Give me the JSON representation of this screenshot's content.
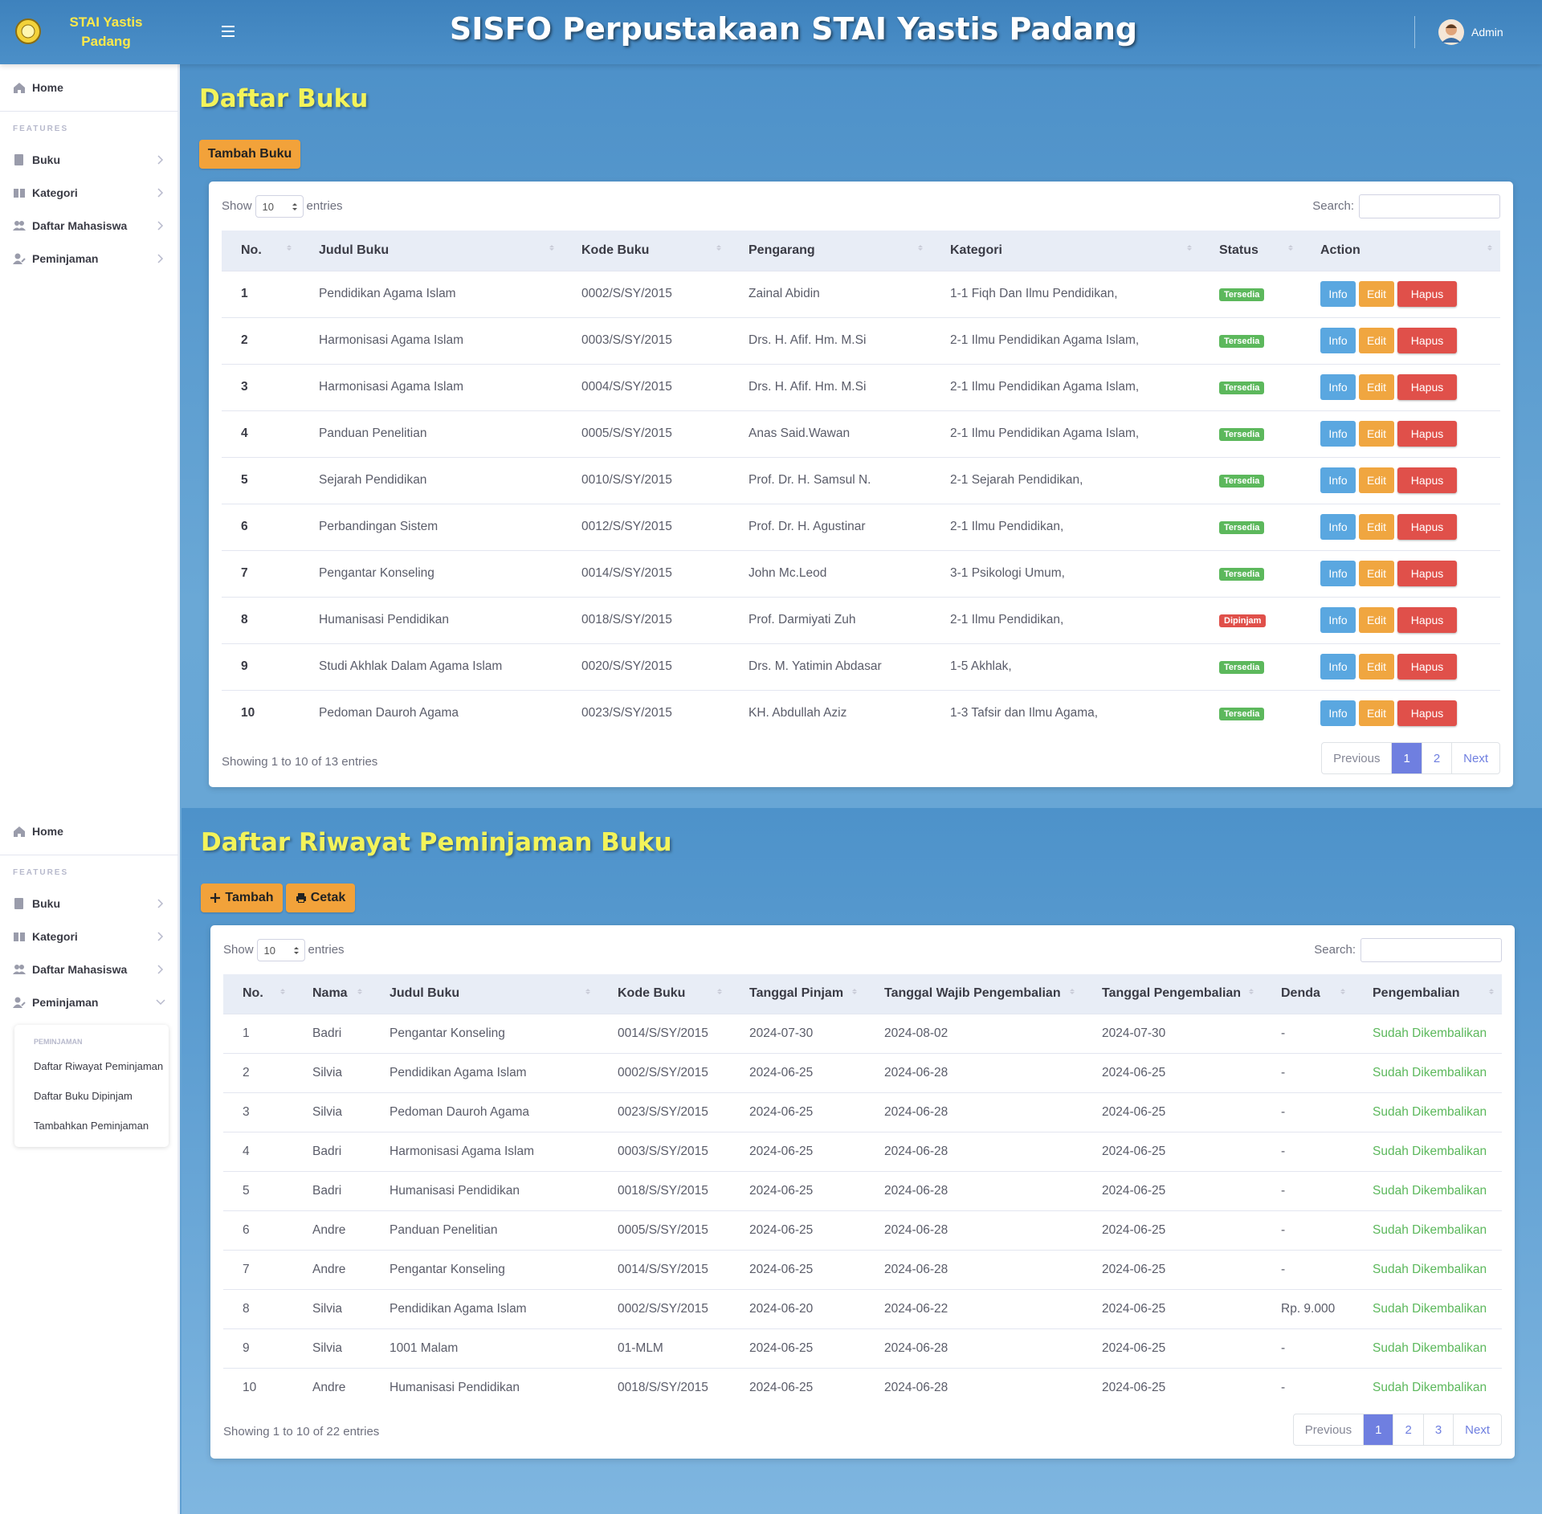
{
  "header": {
    "brand": "STAI Yastis Padang",
    "title": "SISFO Perpustakaan STAI Yastis Padang",
    "user": "Admin"
  },
  "sidebar_top": {
    "home": "Home",
    "features": "FEATURES",
    "menu": [
      "Buku",
      "Kategori",
      "Daftar Mahasiswa",
      "Peminjaman"
    ]
  },
  "sidebar_bottom": {
    "home": "Home",
    "features": "FEATURES",
    "menu": [
      "Buku",
      "Kategori",
      "Daftar Mahasiswa",
      "Peminjaman"
    ],
    "submenu": {
      "heading": "PEMINJAMAN",
      "items": [
        "Daftar Riwayat Peminjaman",
        "Daftar Buku Dipinjam",
        "Tambahkan Peminjaman"
      ]
    }
  },
  "books": {
    "title": "Daftar Buku",
    "buttons": [
      "Tambah Buku"
    ],
    "show_label": "Show",
    "show_value": "10",
    "entries_label": "entries",
    "search_label": "Search:",
    "columns": [
      "No.",
      "Judul Buku",
      "Kode Buku",
      "Pengarang",
      "Kategori",
      "Status",
      "Action"
    ],
    "rows": [
      [
        1,
        "Pendidikan Agama Islam",
        "0002/S/SY/2015",
        "Zainal Abidin",
        "1-1 Fiqh Dan Ilmu Pendidikan,",
        "Tersedia"
      ],
      [
        2,
        "Harmonisasi Agama Islam",
        "0003/S/SY/2015",
        "Drs. H. Afif. Hm. M.Si",
        "2-1 Ilmu Pendidikan Agama Islam,",
        "Tersedia"
      ],
      [
        3,
        "Harmonisasi Agama Islam",
        "0004/S/SY/2015",
        "Drs. H. Afif. Hm. M.Si",
        "2-1 Ilmu Pendidikan Agama Islam,",
        "Tersedia"
      ],
      [
        4,
        "Panduan Penelitian",
        "0005/S/SY/2015",
        "Anas Said.Wawan",
        "2-1 Ilmu Pendidikan Agama Islam,",
        "Tersedia"
      ],
      [
        5,
        "Sejarah Pendidikan",
        "0010/S/SY/2015",
        "Prof. Dr. H. Samsul N.",
        "2-1 Sejarah Pendidikan,",
        "Tersedia"
      ],
      [
        6,
        "Perbandingan Sistem",
        "0012/S/SY/2015",
        "Prof. Dr. H. Agustinar",
        "2-1 Ilmu Pendidikan,",
        "Tersedia"
      ],
      [
        7,
        "Pengantar Konseling",
        "0014/S/SY/2015",
        "John Mc.Leod",
        "3-1 Psikologi Umum,",
        "Tersedia"
      ],
      [
        8,
        "Humanisasi Pendidikan",
        "0018/S/SY/2015",
        "Prof. Darmiyati Zuh",
        "2-1 Ilmu Pendidikan,",
        "Dipinjam"
      ],
      [
        9,
        "Studi Akhlak Dalam Agama Islam",
        "0020/S/SY/2015",
        "Drs. M. Yatimin Abdasar",
        "1-5 Akhlak,",
        "Tersedia"
      ],
      [
        10,
        "Pedoman Dauroh Agama",
        "0023/S/SY/2015",
        "KH. Abdullah Aziz",
        "1-3 Tafsir dan Ilmu Agama,",
        "Tersedia"
      ]
    ],
    "badge_colors": {
      "Tersedia": "#5cb85c",
      "Dipinjam": "#e0504a"
    },
    "actions": [
      "Info",
      "Edit",
      "Hapus"
    ],
    "summary": "Showing 1 to 10 of 13 entries",
    "pagination": [
      "Previous",
      "1",
      "2",
      "Next"
    ]
  },
  "history": {
    "title": "Daftar Riwayat Peminjaman Buku",
    "buttons": [
      "Tambah",
      "Cetak"
    ],
    "show_label": "Show",
    "show_value": "10",
    "entries_label": "entries",
    "search_label": "Search:",
    "columns": [
      "No.",
      "Nama",
      "Judul Buku",
      "Kode Buku",
      "Tanggal Pinjam",
      "Tanggal Wajib Pengembalian",
      "Tanggal Pengembalian",
      "Denda",
      "Pengembalian"
    ],
    "rows": [
      [
        1,
        "Badri",
        "Pengantar Konseling",
        "0014/S/SY/2015",
        "2024-07-30",
        "2024-08-02",
        "2024-07-30",
        "-",
        "Sudah Dikembalikan"
      ],
      [
        2,
        "Silvia",
        "Pendidikan Agama Islam",
        "0002/S/SY/2015",
        "2024-06-25",
        "2024-06-28",
        "2024-06-25",
        "-",
        "Sudah Dikembalikan"
      ],
      [
        3,
        "Silvia",
        "Pedoman Dauroh Agama",
        "0023/S/SY/2015",
        "2024-06-25",
        "2024-06-28",
        "2024-06-25",
        "-",
        "Sudah Dikembalikan"
      ],
      [
        4,
        "Badri",
        "Harmonisasi Agama Islam",
        "0003/S/SY/2015",
        "2024-06-25",
        "2024-06-28",
        "2024-06-25",
        "-",
        "Sudah Dikembalikan"
      ],
      [
        5,
        "Badri",
        "Humanisasi Pendidikan",
        "0018/S/SY/2015",
        "2024-06-25",
        "2024-06-28",
        "2024-06-25",
        "-",
        "Sudah Dikembalikan"
      ],
      [
        6,
        "Andre",
        "Panduan Penelitian",
        "0005/S/SY/2015",
        "2024-06-25",
        "2024-06-28",
        "2024-06-25",
        "-",
        "Sudah Dikembalikan"
      ],
      [
        7,
        "Andre",
        "Pengantar Konseling",
        "0014/S/SY/2015",
        "2024-06-25",
        "2024-06-28",
        "2024-06-25",
        "-",
        "Sudah Dikembalikan"
      ],
      [
        8,
        "Silvia",
        "Pendidikan Agama Islam",
        "0002/S/SY/2015",
        "2024-06-20",
        "2024-06-22",
        "2024-06-25",
        "Rp. 9.000",
        "Sudah Dikembalikan"
      ],
      [
        9,
        "Silvia",
        "1001 Malam",
        "01-MLM",
        "2024-06-25",
        "2024-06-28",
        "2024-06-25",
        "-",
        "Sudah Dikembalikan"
      ],
      [
        10,
        "Andre",
        "Humanisasi Pendidikan",
        "0018/S/SY/2015",
        "2024-06-25",
        "2024-06-28",
        "2024-06-25",
        "-",
        "Sudah Dikembalikan"
      ]
    ],
    "summary": "Showing 1 to 10 of 22 entries",
    "pagination": [
      "Previous",
      "1",
      "2",
      "3",
      "Next"
    ]
  }
}
